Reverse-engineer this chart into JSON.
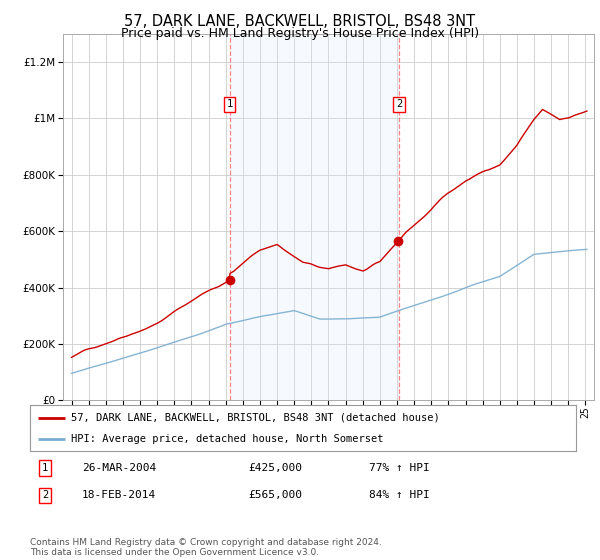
{
  "title": "57, DARK LANE, BACKWELL, BRISTOL, BS48 3NT",
  "subtitle": "Price paid vs. HM Land Registry's House Price Index (HPI)",
  "title_fontsize": 10.5,
  "subtitle_fontsize": 9,
  "background_color": "#ffffff",
  "plot_bg_color": "#ffffff",
  "grid_color": "#cccccc",
  "sale1_date_num": 2004.23,
  "sale2_date_num": 2014.12,
  "sale1_price": 425000,
  "sale2_price": 565000,
  "sale1_label": "1",
  "sale2_label": "2",
  "sale1_label_text": "26-MAR-2004",
  "sale1_amount": "£425,000",
  "sale1_hpi": "77% ↑ HPI",
  "sale2_label_text": "18-FEB-2014",
  "sale2_amount": "£565,000",
  "sale2_hpi": "84% ↑ HPI",
  "legend_line1": "57, DARK LANE, BACKWELL, BRISTOL, BS48 3NT (detached house)",
  "legend_line2": "HPI: Average price, detached house, North Somerset",
  "footer": "Contains HM Land Registry data © Crown copyright and database right 2024.\nThis data is licensed under the Open Government Licence v3.0.",
  "red_color": "#cc0000",
  "blue_color": "#7aadcf",
  "shade_color": "#ddeeff",
  "ylim_min": 0,
  "ylim_max": 1300000,
  "xmin": 1994.5,
  "xmax": 2025.5,
  "red_noise_seed": 42,
  "blue_noise_seed": 99
}
